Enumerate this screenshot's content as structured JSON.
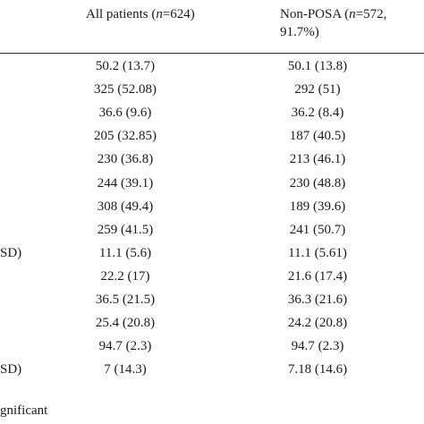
{
  "table": {
    "header": {
      "all_patients_prefix": "All patients (",
      "all_patients_n": "n",
      "all_patients_suffix": "=624)",
      "non_posa_prefix": "Non-POSA (",
      "non_posa_n": "n",
      "non_posa_line1_suffix": "=572,",
      "non_posa_line2": "91.7%)"
    },
    "rows": [
      {
        "label": "",
        "all": "50.2 (13.7)",
        "non_posa": "50.1 (13.8)"
      },
      {
        "label": "",
        "all": "325 (52.08)",
        "non_posa": "292 (51)"
      },
      {
        "label": "",
        "all": "36.6 (9.6)",
        "non_posa": "36.2 (8.4)"
      },
      {
        "label": "",
        "all": "205 (32.85)",
        "non_posa": "187 (40.5)"
      },
      {
        "label": "",
        "all": "230 (36.8)",
        "non_posa": "213 (46.1)"
      },
      {
        "label": "",
        "all": "244 (39.1)",
        "non_posa": "230 (48.8)"
      },
      {
        "label": "",
        "all": "308 (49.4)",
        "non_posa": "189 (39.6)"
      },
      {
        "label": "",
        "all": "259 (41.5)",
        "non_posa": "241 (50.7)"
      },
      {
        "label": "SD)",
        "all": "11.1 (5.6)",
        "non_posa": "11.1 (5.61)"
      },
      {
        "label": "",
        "all": "22.2 (17)",
        "non_posa": "21.6 (17.4)"
      },
      {
        "label": "",
        "all": "36.5 (21.5)",
        "non_posa": "36.3 (21.6)"
      },
      {
        "label": "",
        "all": "25.4 (20.8)",
        "non_posa": "24.2 (20.8)"
      },
      {
        "label": "",
        "all": "94.7 (2.3)",
        "non_posa": "94.7 (2.3)"
      },
      {
        "label": "SD)",
        "all": "7 (14.3)",
        "non_posa": "7.18 (14.6)"
      }
    ],
    "footnote": "gnificant"
  }
}
